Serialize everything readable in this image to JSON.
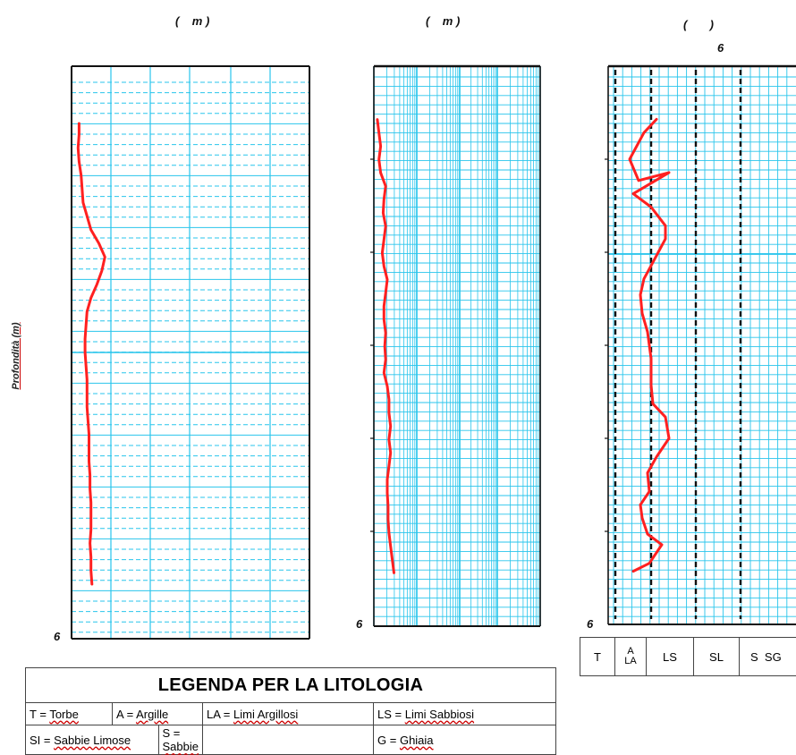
{
  "charts": {
    "unit_labels": [
      {
        "open": "(",
        "mid": "m",
        "close": ")"
      },
      {
        "open": "(",
        "mid": "m",
        "close": ")"
      },
      {
        "open": "(",
        "mid": "",
        "close": ")"
      }
    ],
    "top_tick_chart3": "6",
    "bottom_ticks": [
      "6",
      "6",
      "6"
    ],
    "y_axis_label": "Profondità (m)"
  },
  "legend": {
    "title": "LEGENDA PER LA LITOLOGIA",
    "rows": [
      [
        {
          "code": "T",
          "name": "Torbe"
        },
        {
          "code": "A",
          "name": "Argille"
        },
        {
          "code": "LA",
          "name": "Limi Argillosi"
        },
        {
          "code": "LS",
          "name": "Limi Sabbiosi"
        }
      ],
      [
        {
          "code": "SI",
          "name": "Sabbie Limose"
        },
        {
          "code": "S",
          "name": "Sabbie"
        },
        {
          "code": "G",
          "name": "Ghiaia"
        }
      ]
    ]
  },
  "lithology_bar": {
    "cells": [
      "T",
      "A",
      "LA",
      "LS",
      "SL",
      "S",
      "SG"
    ]
  },
  "chart_data": [
    {
      "type": "line",
      "x_range": [
        0,
        12
      ],
      "y_range": [
        0,
        21
      ],
      "series": [
        {
          "color": "#ff2020",
          "x": [
            0.2,
            0.2,
            0.15,
            0.2,
            0.3,
            0.35,
            0.4,
            0.6,
            0.8,
            1.2,
            1.5,
            1.35,
            1.1,
            0.8,
            0.6,
            0.55,
            0.5,
            0.5,
            0.55,
            0.6,
            0.6,
            0.6,
            0.65,
            0.7,
            0.7,
            0.7,
            0.75,
            0.75,
            0.8,
            0.8,
            0.8,
            0.75,
            0.8,
            0.8,
            0.85
          ],
          "y": [
            2.1,
            2.5,
            3.0,
            3.5,
            4.0,
            4.5,
            5.0,
            5.5,
            6.0,
            6.5,
            7.0,
            7.5,
            8.0,
            8.5,
            9.0,
            9.5,
            10.0,
            10.5,
            11.0,
            11.5,
            12.0,
            12.5,
            13.0,
            13.5,
            14.0,
            14.5,
            15.0,
            15.5,
            16.0,
            16.5,
            17.0,
            17.5,
            18.0,
            18.5,
            19.0
          ]
        }
      ]
    },
    {
      "type": "line",
      "x_range": [
        0,
        10
      ],
      "y_range": [
        0,
        21
      ],
      "series": [
        {
          "color": "#ff2020",
          "x": [
            0.1,
            0.2,
            0.3,
            0.2,
            0.3,
            0.6,
            0.5,
            0.45,
            0.6,
            0.5,
            0.4,
            0.5,
            0.7,
            0.6,
            0.5,
            0.5,
            0.6,
            0.55,
            0.6,
            0.5,
            0.7,
            0.8,
            0.8,
            0.9,
            0.8,
            0.9,
            0.8,
            0.7,
            0.7,
            0.75,
            0.75,
            0.8,
            0.9,
            1.0,
            1.1
          ],
          "y": [
            2.0,
            2.5,
            3.0,
            3.5,
            4.0,
            4.5,
            5.0,
            5.5,
            6.0,
            6.5,
            7.0,
            7.5,
            8.0,
            8.5,
            9.0,
            9.5,
            10.0,
            10.5,
            11.0,
            11.5,
            12.0,
            12.5,
            13.0,
            13.5,
            14.0,
            14.5,
            15.0,
            15.5,
            16.0,
            16.5,
            17.0,
            17.5,
            18.0,
            18.5,
            19.0
          ]
        }
      ]
    },
    {
      "type": "line",
      "x_range": [
        0,
        10
      ],
      "y_range": [
        0,
        21
      ],
      "series": [
        {
          "color": "#ff2020",
          "x": [
            2.5,
            1.8,
            1.0,
            1.5,
            3.2,
            1.2,
            2.2,
            3.0,
            3.0,
            2.6,
            2.2,
            1.8,
            1.6,
            1.7,
            2.0,
            2.2,
            2.2,
            2.3,
            3.0,
            3.2,
            2.5,
            2.0,
            2.1,
            1.6,
            1.7,
            2.0,
            2.8,
            2.1,
            1.2
          ],
          "y": [
            2.0,
            2.5,
            3.5,
            4.3,
            4.0,
            4.8,
            5.3,
            6.0,
            6.5,
            7.0,
            7.5,
            8.0,
            8.6,
            9.3,
            10.0,
            11.0,
            12.0,
            12.7,
            13.2,
            14.0,
            14.7,
            15.3,
            16.0,
            16.5,
            17.0,
            17.6,
            18.0,
            18.7,
            19.0
          ]
        }
      ]
    }
  ]
}
